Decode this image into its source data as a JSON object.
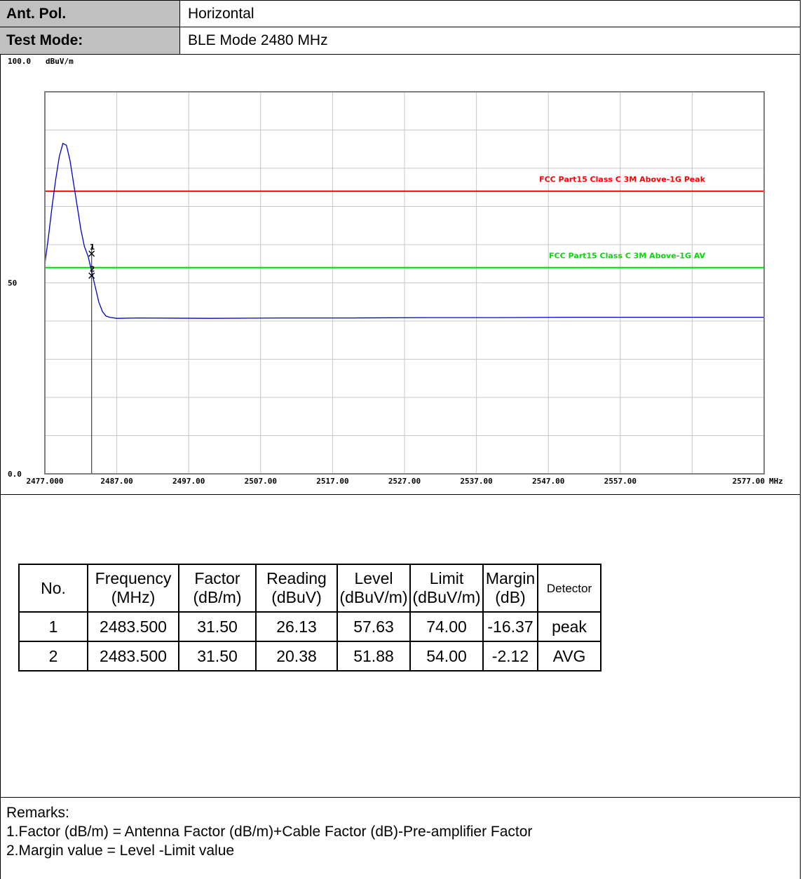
{
  "header": {
    "ant_pol_label": "Ant. Pol.",
    "ant_pol_value": "Horizontal",
    "test_mode_label": "Test Mode:",
    "test_mode_value": "BLE Mode 2480 MHz"
  },
  "chart_data": {
    "type": "line",
    "ylabel": "dBuV/m",
    "xunit": "MHz",
    "xlim": [
      2477.0,
      2577.0
    ],
    "ylim": [
      0.0,
      100.0
    ],
    "x_ticks": [
      {
        "value": 2477.0,
        "label": "2477.000"
      },
      {
        "value": 2487.0,
        "label": "2487.00"
      },
      {
        "value": 2497.0,
        "label": "2497.00"
      },
      {
        "value": 2507.0,
        "label": "2507.00"
      },
      {
        "value": 2517.0,
        "label": "2517.00"
      },
      {
        "value": 2527.0,
        "label": "2527.00"
      },
      {
        "value": 2537.0,
        "label": "2537.00"
      },
      {
        "value": 2547.0,
        "label": "2547.00"
      },
      {
        "value": 2557.0,
        "label": "2557.00"
      },
      {
        "value": 2577.0,
        "label": "2577.00"
      }
    ],
    "y_ticks": [
      {
        "value": 100.0,
        "label": "100.0"
      },
      {
        "value": 50.0,
        "label": "50"
      },
      {
        "value": 0.0,
        "label": "0.0"
      }
    ],
    "grid": true,
    "limit_lines": [
      {
        "name": "FCC Part15 Class C 3M Above-1G Peak",
        "value": 74.0,
        "color": "#ff0000"
      },
      {
        "name": "FCC Part15 Class C 3M Above-1G AV",
        "value": 54.0,
        "color": "#00dd00"
      }
    ],
    "series": [
      {
        "color": "#0000cc",
        "x": [
          2477.0,
          2477.5,
          2478.0,
          2478.5,
          2479.0,
          2479.5,
          2480.0,
          2480.5,
          2481.0,
          2481.5,
          2482.0,
          2482.5,
          2483.0,
          2483.5,
          2484.0,
          2484.5,
          2485.0,
          2485.5,
          2486.0,
          2487.0,
          2490.0,
          2500.0,
          2510.0,
          2520.0,
          2530.0,
          2540.0,
          2550.0,
          2560.0,
          2570.0,
          2577.0
        ],
        "y": [
          55.0,
          62.0,
          70.0,
          77.0,
          83.0,
          86.5,
          86.0,
          82.0,
          76.0,
          70.0,
          64.0,
          59.5,
          57.0,
          53.0,
          49.0,
          45.0,
          42.5,
          41.3,
          41.0,
          40.7,
          40.8,
          40.7,
          40.8,
          40.8,
          40.9,
          40.9,
          41.0,
          41.0,
          41.0,
          41.0
        ]
      }
    ],
    "markers": [
      {
        "label": "1",
        "x": 2483.5,
        "y": 57.63
      },
      {
        "label": "2",
        "x": 2483.5,
        "y": 51.88
      }
    ],
    "marker_line_x": 2483.5
  },
  "table": {
    "headers": [
      [
        "No."
      ],
      [
        "Frequency",
        "(MHz)"
      ],
      [
        "Factor",
        "(dB/m)"
      ],
      [
        "Reading",
        "(dBuV)"
      ],
      [
        "Level",
        "(dBuV/m)"
      ],
      [
        "Limit",
        "(dBuV/m)"
      ],
      [
        "Margin",
        "(dB)"
      ],
      [
        "Detector"
      ]
    ],
    "rows": [
      [
        "1",
        "2483.500",
        "31.50",
        "26.13",
        "57.63",
        "74.00",
        "-16.37",
        "peak"
      ],
      [
        "2",
        "2483.500",
        "31.50",
        "20.38",
        "51.88",
        "54.00",
        "-2.12",
        "AVG"
      ]
    ]
  },
  "remarks": {
    "title": "Remarks:",
    "lines": [
      "1.Factor (dB/m) = Antenna Factor (dB/m)+Cable Factor (dB)-Pre-amplifier Factor",
      "2.Margin value = Level -Limit value"
    ]
  }
}
